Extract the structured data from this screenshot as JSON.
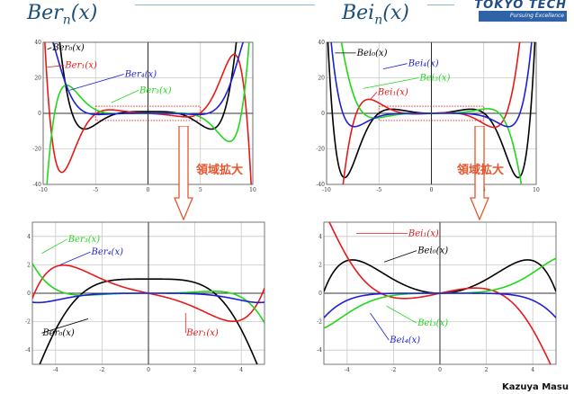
{
  "slide": {
    "title_left": {
      "base": "Ber",
      "sub": "n",
      "arg": "(x)"
    },
    "title_right": {
      "base": "Bei",
      "sub": "n",
      "arg": "(x)"
    },
    "logo_main": "TOKYO TECH",
    "logo_tagline": "Pursuing Excellence",
    "author": "Kazuya Masu",
    "zoom_label": "領域拡大"
  },
  "colors": {
    "n0": "#000000",
    "n1": "#e8191a",
    "n3": "#22d71a",
    "n4": "#1f1fd6",
    "title": "#1a4f7a",
    "zoom": "#e4572e",
    "dotted": "#e8191a"
  },
  "chart_data": [
    {
      "id": "ber-full",
      "type": "line",
      "function": "ber",
      "xlim": [
        -10,
        10
      ],
      "ylim": [
        -40,
        40
      ],
      "xticks": [
        -10,
        -5,
        0,
        5,
        10
      ],
      "yticks": [
        -40,
        -20,
        0,
        20,
        40
      ],
      "grid": true,
      "zoom_box": {
        "x": [
          -5,
          5
        ],
        "y": [
          -4,
          4
        ]
      },
      "series": [
        {
          "order": 0,
          "name": "Ber₀(x)"
        },
        {
          "order": 1,
          "name": "Ber₁(x)"
        },
        {
          "order": 3,
          "name": "Ber₃(x)"
        },
        {
          "order": 4,
          "name": "Ber₄(x)"
        }
      ]
    },
    {
      "id": "bei-full",
      "type": "line",
      "function": "bei",
      "xlim": [
        -10,
        10
      ],
      "ylim": [
        -40,
        40
      ],
      "xticks": [
        -10,
        -5,
        0,
        5,
        10
      ],
      "yticks": [
        -40,
        -20,
        0,
        20,
        40
      ],
      "grid": true,
      "zoom_box": {
        "x": [
          -5,
          5
        ],
        "y": [
          -4,
          4
        ]
      },
      "series": [
        {
          "order": 0,
          "name": "Bei₀(x)"
        },
        {
          "order": 1,
          "name": "Bei₁(x)"
        },
        {
          "order": 3,
          "name": "Bei₃(x)"
        },
        {
          "order": 4,
          "name": "Bei₄(x)"
        }
      ]
    },
    {
      "id": "ber-zoom",
      "type": "line",
      "function": "ber",
      "xlim": [
        -5,
        5
      ],
      "ylim": [
        -5,
        5
      ],
      "xticks": [
        -4,
        -2,
        0,
        2,
        4
      ],
      "yticks": [
        -4,
        -2,
        0,
        2,
        4
      ],
      "grid": true,
      "series": [
        {
          "order": 0,
          "name": "Ber₀(x)"
        },
        {
          "order": 1,
          "name": "Ber₁(x)"
        },
        {
          "order": 3,
          "name": "Ber₃(x)"
        },
        {
          "order": 4,
          "name": "Ber₄(x)"
        }
      ]
    },
    {
      "id": "bei-zoom",
      "type": "line",
      "function": "bei",
      "xlim": [
        -5,
        5
      ],
      "ylim": [
        -5,
        5
      ],
      "xticks": [
        -4,
        -2,
        0,
        2,
        4
      ],
      "yticks": [
        -4,
        -2,
        0,
        2,
        4
      ],
      "grid": true,
      "series": [
        {
          "order": 0,
          "name": "Bei₀(x)"
        },
        {
          "order": 1,
          "name": "Bei₁(x)"
        },
        {
          "order": 3,
          "name": "Bei₃(x)"
        },
        {
          "order": 4,
          "name": "Bei₄(x)"
        }
      ]
    }
  ]
}
